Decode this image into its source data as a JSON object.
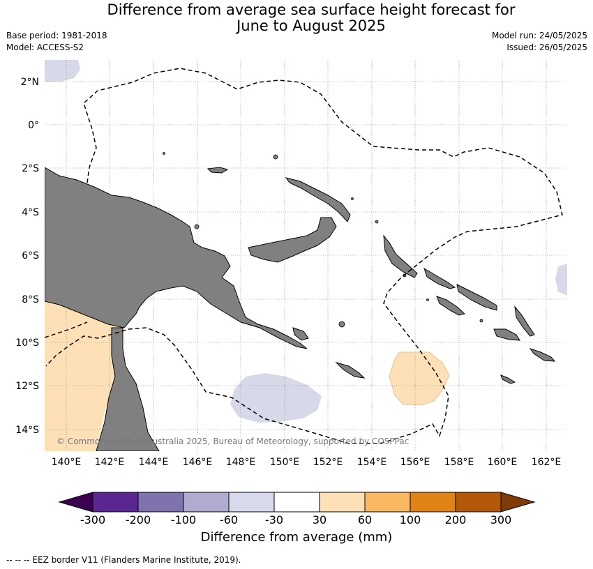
{
  "header": {
    "title_line1": "Difference from average sea surface height forecast for",
    "title_line2": "June to August 2025",
    "base_period": "Base period: 1981-2018",
    "model": "Model: ACCESS-S2",
    "model_run": "Model run: 24/05/2025",
    "issued": "Issued: 26/05/2025"
  },
  "map": {
    "lon_labels": [
      "140°E",
      "142°E",
      "144°E",
      "146°E",
      "148°E",
      "150°E",
      "152°E",
      "154°E",
      "156°E",
      "158°E",
      "160°E",
      "162°E"
    ],
    "lat_labels": [
      "2°N",
      "0°",
      "2°S",
      "4°S",
      "6°S",
      "8°S",
      "10°S",
      "12°S",
      "14°S"
    ],
    "copyright": "© Commonwealth of Australia 2025, Bureau of Meteorology, supported by COSPPac",
    "colors": {
      "land": "#808080",
      "ocean": "#ffffff",
      "neg_light": "#d7d8e8",
      "pos_light": "#fde0b6"
    }
  },
  "colorbar": {
    "ticks": [
      "-300",
      "-200",
      "-100",
      "-60",
      "-30",
      "30",
      "60",
      "100",
      "200",
      "300"
    ],
    "colors": [
      "#3b0050",
      "#5a2790",
      "#8072ad",
      "#b1aad1",
      "#d8d9ea",
      "#ffffff",
      "#fde0b6",
      "#fbb863",
      "#e08214",
      "#b35806",
      "#7f3b08"
    ],
    "title": "Difference from average (mm)"
  },
  "footnote": "--  --  -- EEZ border V11 (Flanders Marine Institute, 2019)."
}
